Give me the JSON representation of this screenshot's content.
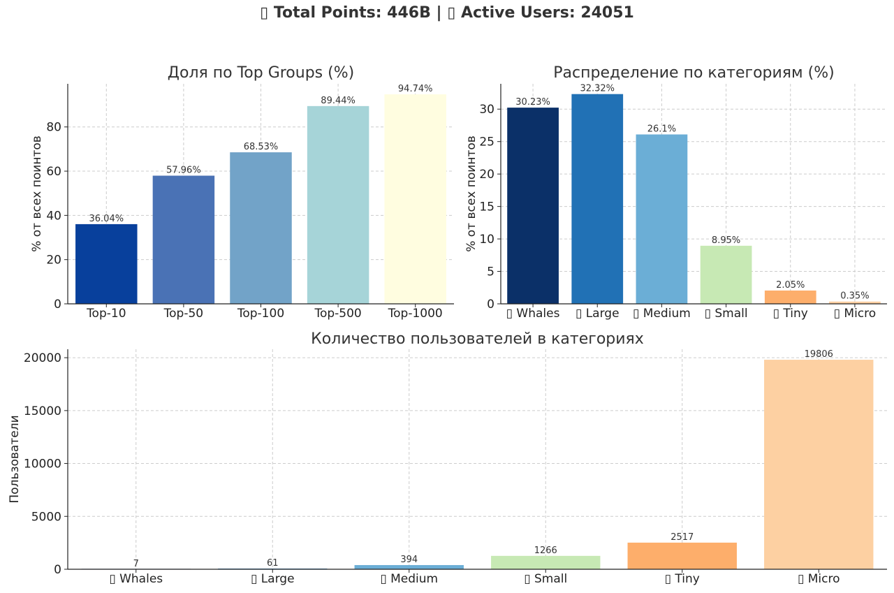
{
  "suptitle": "▯ Total Points: 446B | ▯ Active Users: 24051",
  "chart_data": [
    {
      "type": "bar",
      "title": "Доля по Top Groups (%)",
      "ylabel": "% от всех поинтов",
      "xlabel": "",
      "categories": [
        "Top-10",
        "Top-50",
        "Top-100",
        "Top-500",
        "Top-1000"
      ],
      "values": [
        36.04,
        57.96,
        68.53,
        89.44,
        94.74
      ],
      "value_labels": [
        "36.04%",
        "57.96%",
        "68.53%",
        "89.44%",
        "94.74%"
      ],
      "colors": [
        "#08409c",
        "#4a72b5",
        "#72a3c8",
        "#a6d4d8",
        "#fffde0"
      ],
      "ylim": [
        0,
        99.5
      ],
      "yticks": [
        0,
        20,
        40,
        60,
        80
      ],
      "grid": true
    },
    {
      "type": "bar",
      "title": "Распределение по категориям (%)",
      "ylabel": "% от всех поинтов",
      "xlabel": "",
      "categories": [
        "▯ Whales",
        "▯ Large",
        "▯ Medium",
        "▯ Small",
        "▯ Tiny",
        "▯ Micro"
      ],
      "values": [
        30.23,
        32.32,
        26.1,
        8.95,
        2.05,
        0.35
      ],
      "value_labels": [
        "30.23%",
        "32.32%",
        "26.1%",
        "8.95%",
        "2.05%",
        "0.35%"
      ],
      "colors": [
        "#0b3068",
        "#2171b5",
        "#6baed6",
        "#c7e9b4",
        "#fdae6b",
        "#fdd0a2"
      ],
      "ylim": [
        0,
        33.9
      ],
      "yticks": [
        0,
        5,
        10,
        15,
        20,
        25,
        30
      ],
      "grid": true
    },
    {
      "type": "bar",
      "title": "Количество пользователей в категориях",
      "ylabel": "Пользователи",
      "xlabel": "",
      "categories": [
        "▯ Whales",
        "▯ Large",
        "▯ Medium",
        "▯ Small",
        "▯ Tiny",
        "▯ Micro"
      ],
      "values": [
        7,
        61,
        394,
        1266,
        2517,
        19806
      ],
      "value_labels": [
        "7",
        "61",
        "394",
        "1266",
        "2517",
        "19806"
      ],
      "colors": [
        "#0b3068",
        "#2171b5",
        "#6baed6",
        "#c7e9b4",
        "#fdae6b",
        "#fdd0a2"
      ],
      "ylim": [
        0,
        20800
      ],
      "yticks": [
        0,
        5000,
        10000,
        15000,
        20000
      ],
      "grid": true
    }
  ]
}
